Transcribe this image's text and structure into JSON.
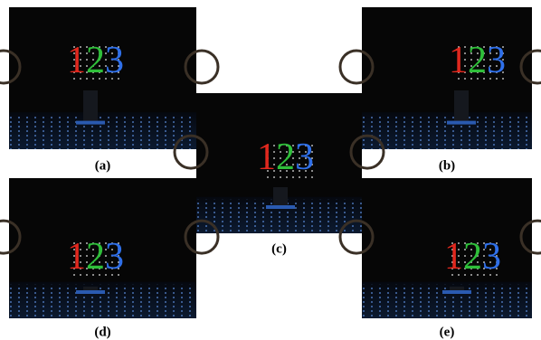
{
  "panels": [
    {
      "caption": "(a)",
      "digits": [
        "1",
        "2",
        "3"
      ]
    },
    {
      "caption": "(b)",
      "digits": [
        "1",
        "2",
        "3"
      ]
    },
    {
      "caption": "(c)",
      "digits": [
        "1",
        "2",
        "3"
      ]
    },
    {
      "caption": "(d)",
      "digits": [
        "1",
        "2",
        "3"
      ]
    },
    {
      "caption": "(e)",
      "digits": [
        "1",
        "2",
        "3"
      ]
    }
  ]
}
